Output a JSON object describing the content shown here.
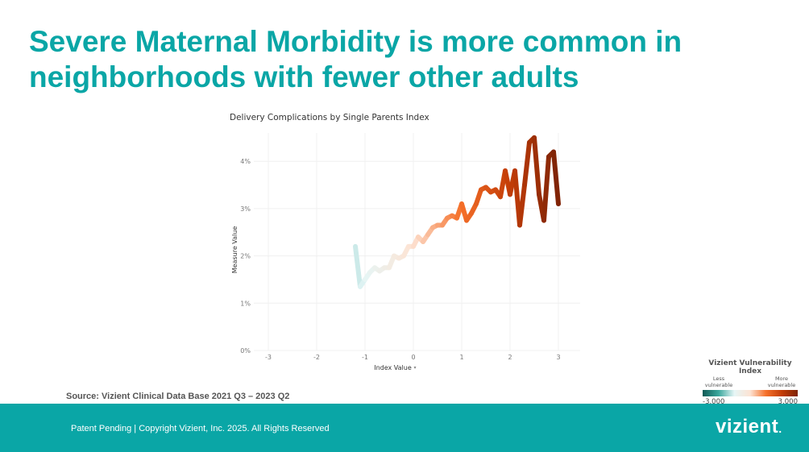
{
  "slide": {
    "title": "Severe Maternal Morbidity is more common in neighborhoods with fewer other adults",
    "source": "Source: Vizient Clinical Data Base 2021 Q3 – 2023 Q2",
    "footer_text": "Patent Pending  |  Copyright Vizient, Inc. 2025. All Rights Reserved",
    "logo_text": "vizient",
    "logo_dot": "."
  },
  "legend": {
    "title": "Vizient Vulnerability Index",
    "left_label": "Less vulnerable",
    "right_label": "More vulnerable",
    "min_label": "-3.000",
    "max_label": "3.000",
    "colors": [
      "#0f5a55",
      "#3aa79d",
      "#e6f6f6",
      "#fde3d3",
      "#f5702a",
      "#c33d07",
      "#7e2306"
    ]
  },
  "chart_data": {
    "type": "line",
    "title": "Delivery Complications by Single Parents Index",
    "xlabel": "Index Value",
    "ylabel": "Measure Value",
    "xlim": [
      -3.3,
      3.45
    ],
    "ylim": [
      0,
      4.6
    ],
    "x_ticks": [
      "-3",
      "-2",
      "-1",
      "0",
      "1",
      "2",
      "3"
    ],
    "x_tick_values": [
      -3,
      -2,
      -1,
      0,
      1,
      2,
      3
    ],
    "y_ticks": [
      "0%",
      "1%",
      "2%",
      "3%",
      "4%"
    ],
    "y_tick_values": [
      0,
      1,
      2,
      3,
      4
    ],
    "grid": true,
    "color_scale": {
      "min": -3,
      "max": 3
    },
    "series": [
      {
        "points": [
          [
            -1.2,
            2.2
          ],
          [
            -1.1,
            1.35
          ],
          [
            -1.0,
            1.5
          ],
          [
            -0.9,
            1.65
          ],
          [
            -0.8,
            1.75
          ],
          [
            -0.7,
            1.68
          ],
          [
            -0.6,
            1.75
          ],
          [
            -0.5,
            1.75
          ],
          [
            -0.4,
            2.0
          ],
          [
            -0.3,
            1.95
          ],
          [
            -0.2,
            2.0
          ],
          [
            -0.1,
            2.2
          ],
          [
            0.0,
            2.2
          ],
          [
            0.1,
            2.4
          ],
          [
            0.2,
            2.3
          ],
          [
            0.3,
            2.45
          ],
          [
            0.4,
            2.6
          ],
          [
            0.5,
            2.65
          ],
          [
            0.6,
            2.65
          ],
          [
            0.7,
            2.8
          ],
          [
            0.8,
            2.85
          ],
          [
            0.9,
            2.8
          ],
          [
            1.0,
            3.1
          ],
          [
            1.1,
            2.75
          ],
          [
            1.2,
            2.9
          ],
          [
            1.3,
            3.1
          ],
          [
            1.4,
            3.4
          ],
          [
            1.5,
            3.45
          ],
          [
            1.6,
            3.35
          ],
          [
            1.7,
            3.4
          ],
          [
            1.8,
            3.25
          ],
          [
            1.9,
            3.8
          ],
          [
            2.0,
            3.3
          ],
          [
            2.1,
            3.8
          ],
          [
            2.2,
            2.65
          ],
          [
            2.3,
            3.5
          ],
          [
            2.4,
            4.4
          ],
          [
            2.5,
            4.5
          ],
          [
            2.6,
            3.3
          ],
          [
            2.7,
            2.75
          ],
          [
            2.8,
            4.1
          ],
          [
            2.9,
            4.2
          ],
          [
            3.0,
            3.1
          ]
        ]
      }
    ]
  }
}
